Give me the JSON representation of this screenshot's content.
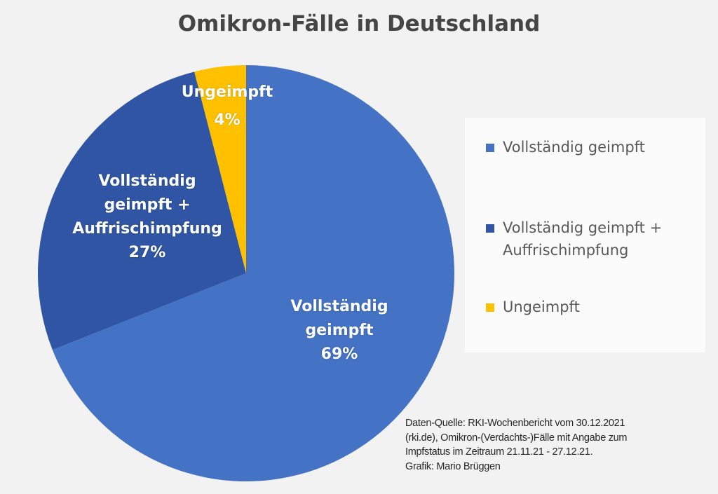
{
  "chart_data": {
    "type": "pie",
    "title": "Omikron-Fälle in Deutschland",
    "categories": [
      "Vollständig geimpft",
      "Vollständig geimpft + Auffrischimpfung",
      "Ungeimpft"
    ],
    "values": [
      69,
      27,
      4
    ],
    "unit": "%",
    "colors": [
      "#4472C4",
      "#2F55A4",
      "#FFC000"
    ],
    "start_angle_deg": 0,
    "direction": "clockwise",
    "legend_position": "right",
    "data_labels": [
      {
        "lines": [
          "Vollständig",
          "geimpft",
          "69%"
        ]
      },
      {
        "lines": [
          "Vollständig",
          "geimpft +",
          "Auffrischimpfung",
          "27%"
        ]
      },
      {
        "lines": [
          "Ungeimpft",
          "4%"
        ]
      }
    ]
  },
  "title": "Omikron-Fälle in Deutschland",
  "legend": {
    "items": [
      {
        "lines": [
          "Vollständig geimpft"
        ],
        "color": "#4472C4"
      },
      {
        "lines": [
          "Vollständig geimpft +",
          "Auffrischimpfung"
        ],
        "color": "#2F55A4"
      },
      {
        "lines": [
          "Ungeimpft"
        ],
        "color": "#FFC000"
      }
    ]
  },
  "source_note": {
    "lines": [
      "Daten-Quelle: RKI-Wochenbericht vom 30.12.2021",
      "(rki.de), Omikron-(Verdachts-)Fälle mit Angabe zum",
      "Impfstatus im Zeitraum 21.11.21 - 27.12.21.",
      "Grafik: Mario Brüggen"
    ]
  }
}
